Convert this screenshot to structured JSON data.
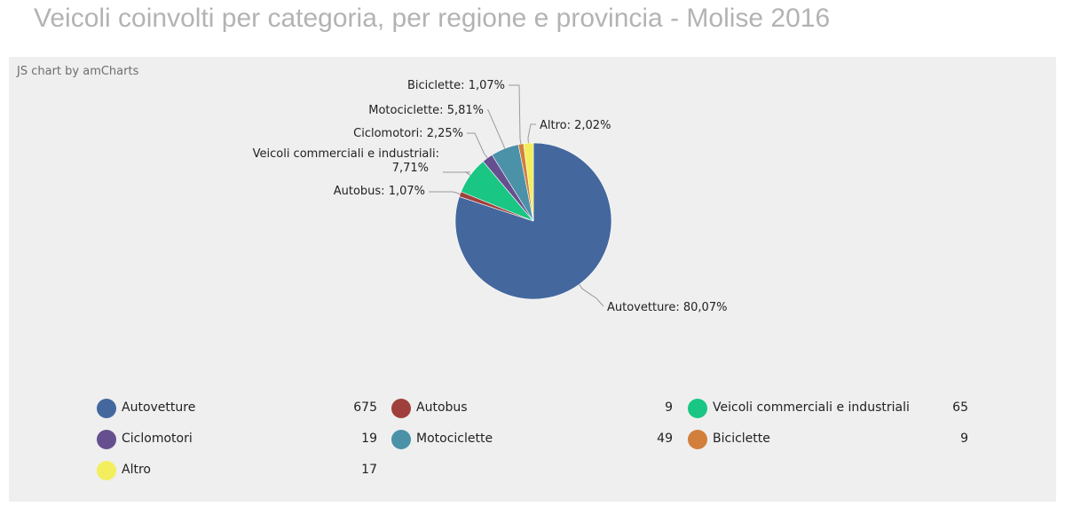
{
  "page": {
    "title": "Veicoli coinvolti per categoria, per regione e provincia - Molise 2016",
    "credit": "JS chart by amCharts"
  },
  "chart_data": {
    "type": "pie",
    "title": "Veicoli coinvolti per categoria, per regione e provincia - Molise 2016",
    "slices": [
      {
        "name": "Autovetture",
        "value": 675,
        "percent_label": "80,07%",
        "color": "#44679e"
      },
      {
        "name": "Autobus",
        "value": 9,
        "percent_label": "1,07%",
        "color": "#a0403c"
      },
      {
        "name": "Veicoli commerciali e industriali",
        "value": 65,
        "percent_label": "7,71%",
        "color": "#19c684"
      },
      {
        "name": "Ciclomotori",
        "value": 19,
        "percent_label": "2,25%",
        "color": "#654f8e"
      },
      {
        "name": "Motociclette",
        "value": 49,
        "percent_label": "5,81%",
        "color": "#4b91a8"
      },
      {
        "name": "Biciclette",
        "value": 9,
        "percent_label": "1,07%",
        "color": "#d17f3b"
      },
      {
        "name": "Altro",
        "value": 17,
        "percent_label": "2,02%",
        "color": "#f2ee5d"
      }
    ],
    "legend_position": "bottom"
  }
}
